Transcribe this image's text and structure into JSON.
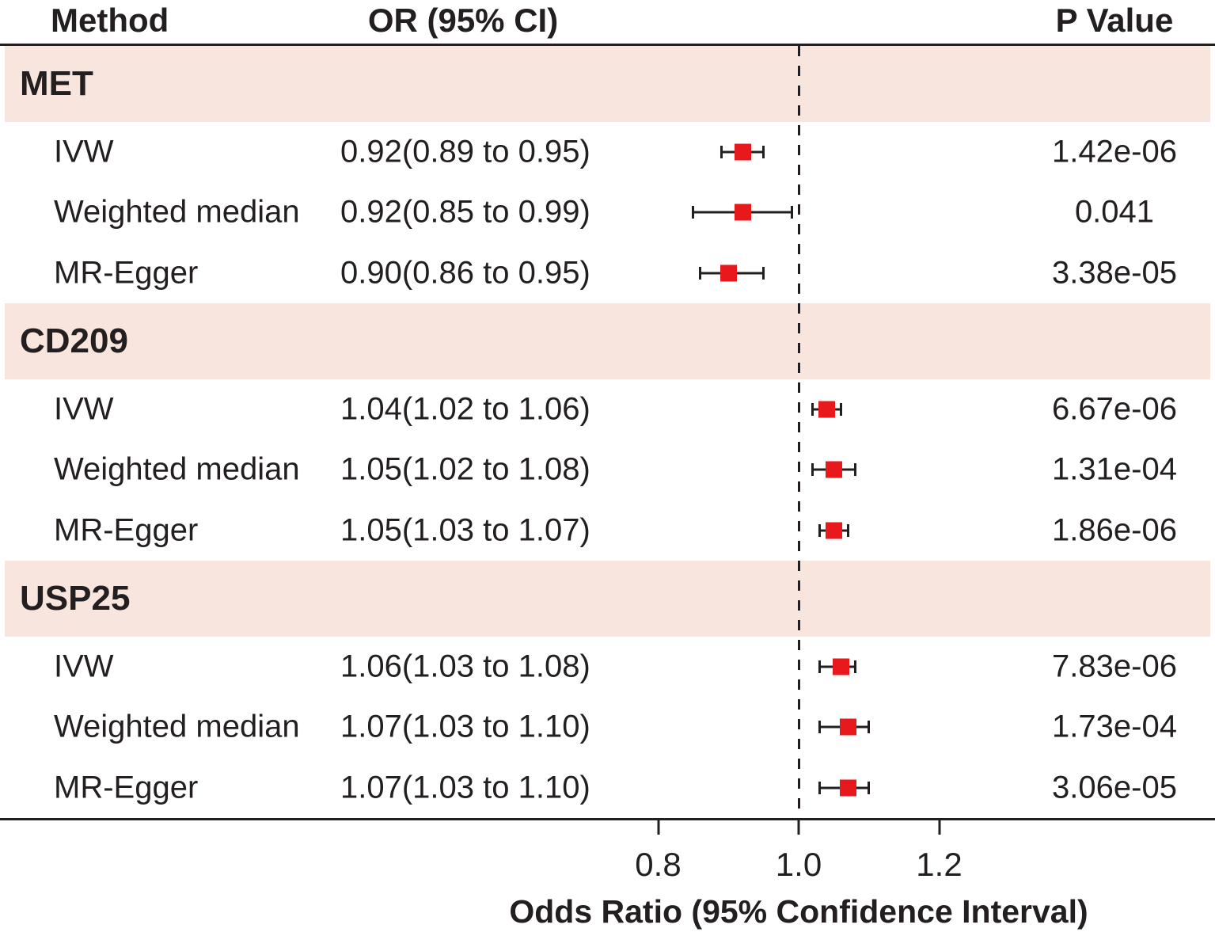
{
  "header": {
    "method": "Method",
    "or_ci": "OR (95% CI)",
    "p_value": "P Value"
  },
  "colors": {
    "band": "#f8e5de",
    "marker": "#e8191c",
    "ink": "#231f20"
  },
  "axis": {
    "ticks": [
      "0.8",
      "1.0",
      "1.2"
    ],
    "tick_values": [
      0.8,
      1.0,
      1.2
    ],
    "reference_line": 1.0,
    "label": "Odds Ratio (95% Confidence Interval)"
  },
  "chart_data": {
    "type": "forest",
    "title": "",
    "xlabel": "Odds Ratio (95% Confidence Interval)",
    "xlim": [
      0.7,
      1.35
    ],
    "reference_line": 1.0,
    "columns": [
      "Method",
      "OR (95% CI)",
      "P Value"
    ],
    "groups": [
      {
        "name": "MET",
        "rows": [
          {
            "method": "IVW",
            "or_ci": "0.92(0.89 to 0.95)",
            "or": 0.92,
            "ci_low": 0.89,
            "ci_high": 0.95,
            "p": "1.42e-06"
          },
          {
            "method": "Weighted median",
            "or_ci": "0.92(0.85 to 0.99)",
            "or": 0.92,
            "ci_low": 0.85,
            "ci_high": 0.99,
            "p": "0.041"
          },
          {
            "method": "MR-Egger",
            "or_ci": "0.90(0.86 to 0.95)",
            "or": 0.9,
            "ci_low": 0.86,
            "ci_high": 0.95,
            "p": "3.38e-05"
          }
        ]
      },
      {
        "name": "CD209",
        "rows": [
          {
            "method": "IVW",
            "or_ci": "1.04(1.02 to 1.06)",
            "or": 1.04,
            "ci_low": 1.02,
            "ci_high": 1.06,
            "p": "6.67e-06"
          },
          {
            "method": "Weighted median",
            "or_ci": "1.05(1.02 to 1.08)",
            "or": 1.05,
            "ci_low": 1.02,
            "ci_high": 1.08,
            "p": "1.31e-04"
          },
          {
            "method": "MR-Egger",
            "or_ci": "1.05(1.03 to 1.07)",
            "or": 1.05,
            "ci_low": 1.03,
            "ci_high": 1.07,
            "p": "1.86e-06"
          }
        ]
      },
      {
        "name": "USP25",
        "rows": [
          {
            "method": "IVW",
            "or_ci": "1.06(1.03 to 1.08)",
            "or": 1.06,
            "ci_low": 1.03,
            "ci_high": 1.08,
            "p": "7.83e-06"
          },
          {
            "method": "Weighted median",
            "or_ci": "1.07(1.03 to 1.10)",
            "or": 1.07,
            "ci_low": 1.03,
            "ci_high": 1.1,
            "p": "1.73e-04"
          },
          {
            "method": "MR-Egger",
            "or_ci": "1.07(1.03 to 1.10)",
            "or": 1.07,
            "ci_low": 1.03,
            "ci_high": 1.1,
            "p": "3.06e-05"
          }
        ]
      }
    ]
  }
}
